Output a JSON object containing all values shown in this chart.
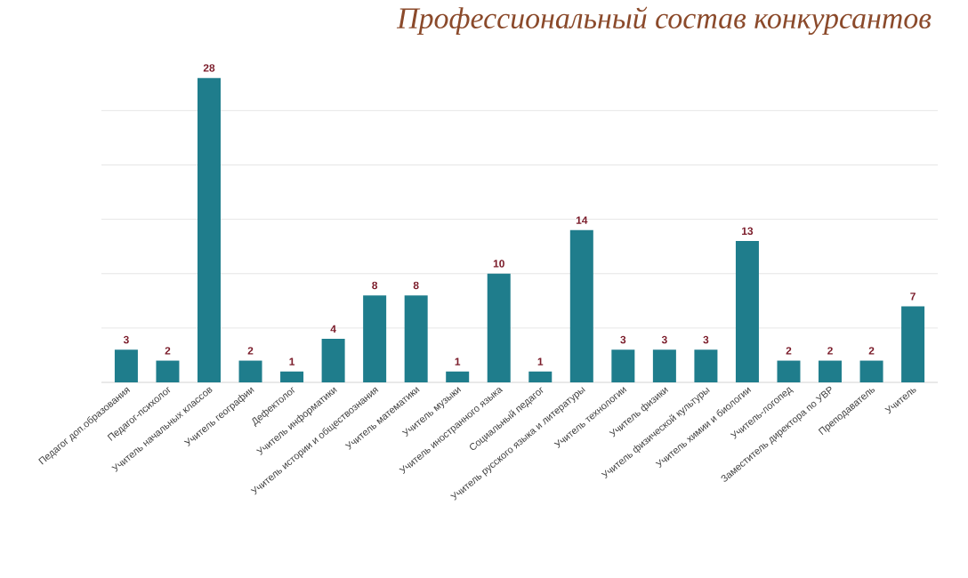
{
  "chart_data": {
    "type": "bar",
    "title": "Профессиональный состав конкурсантов",
    "categories": [
      "Педагог доп.образования",
      "Педагог-психолог",
      "Учитель начальных классов",
      "Учитель географии",
      "Дефектолог",
      "Учитель информатики",
      "Учитель истории и обществознания",
      "Учитель математики",
      "Учитель музыки",
      "Учитель иностранного языка",
      "Социальный педагог",
      "Учитель русского языка и литературы",
      "Учитель технологии",
      "Учитель физики",
      "Учитель физической культуры",
      "Учитель химии и биологии",
      "Учитель-логопед",
      "Заместитель директора по УВР",
      "Преподаватель",
      "Учитель"
    ],
    "values": [
      3,
      2,
      28,
      2,
      1,
      4,
      8,
      8,
      1,
      10,
      1,
      14,
      3,
      3,
      3,
      13,
      2,
      2,
      2,
      7
    ],
    "color": "#1f7d8c",
    "data_labels": true,
    "grid": "y",
    "tick_labels": "x"
  }
}
